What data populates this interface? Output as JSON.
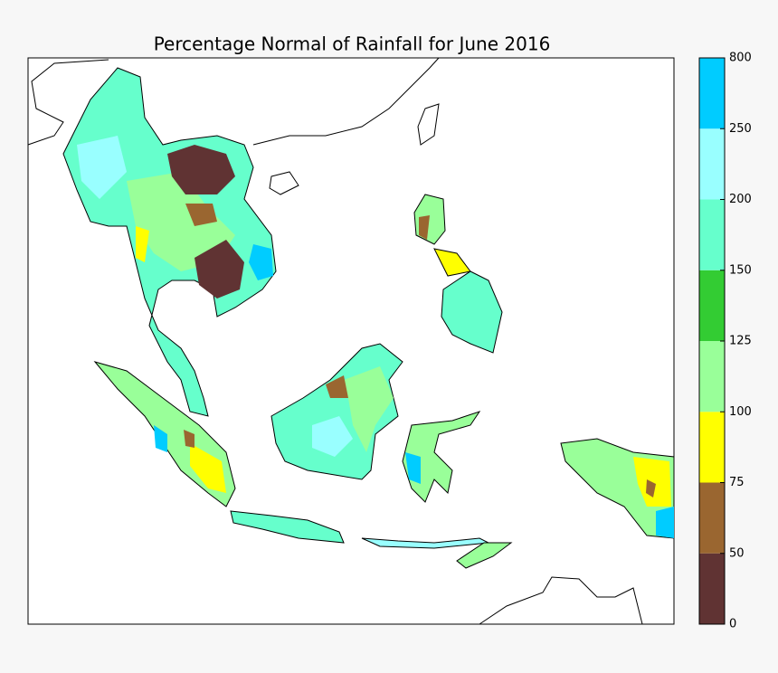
{
  "title": "Percentage Normal of Rainfall for June 2016",
  "colorbar": {
    "boundaries": [
      0,
      50,
      75,
      100,
      125,
      150,
      200,
      250,
      800
    ],
    "colors": [
      "#603333",
      "#9a6630",
      "#ffff00",
      "#99ff99",
      "#33cc33",
      "#66ffcc",
      "#99ffff",
      "#00ccff"
    ]
  }
}
